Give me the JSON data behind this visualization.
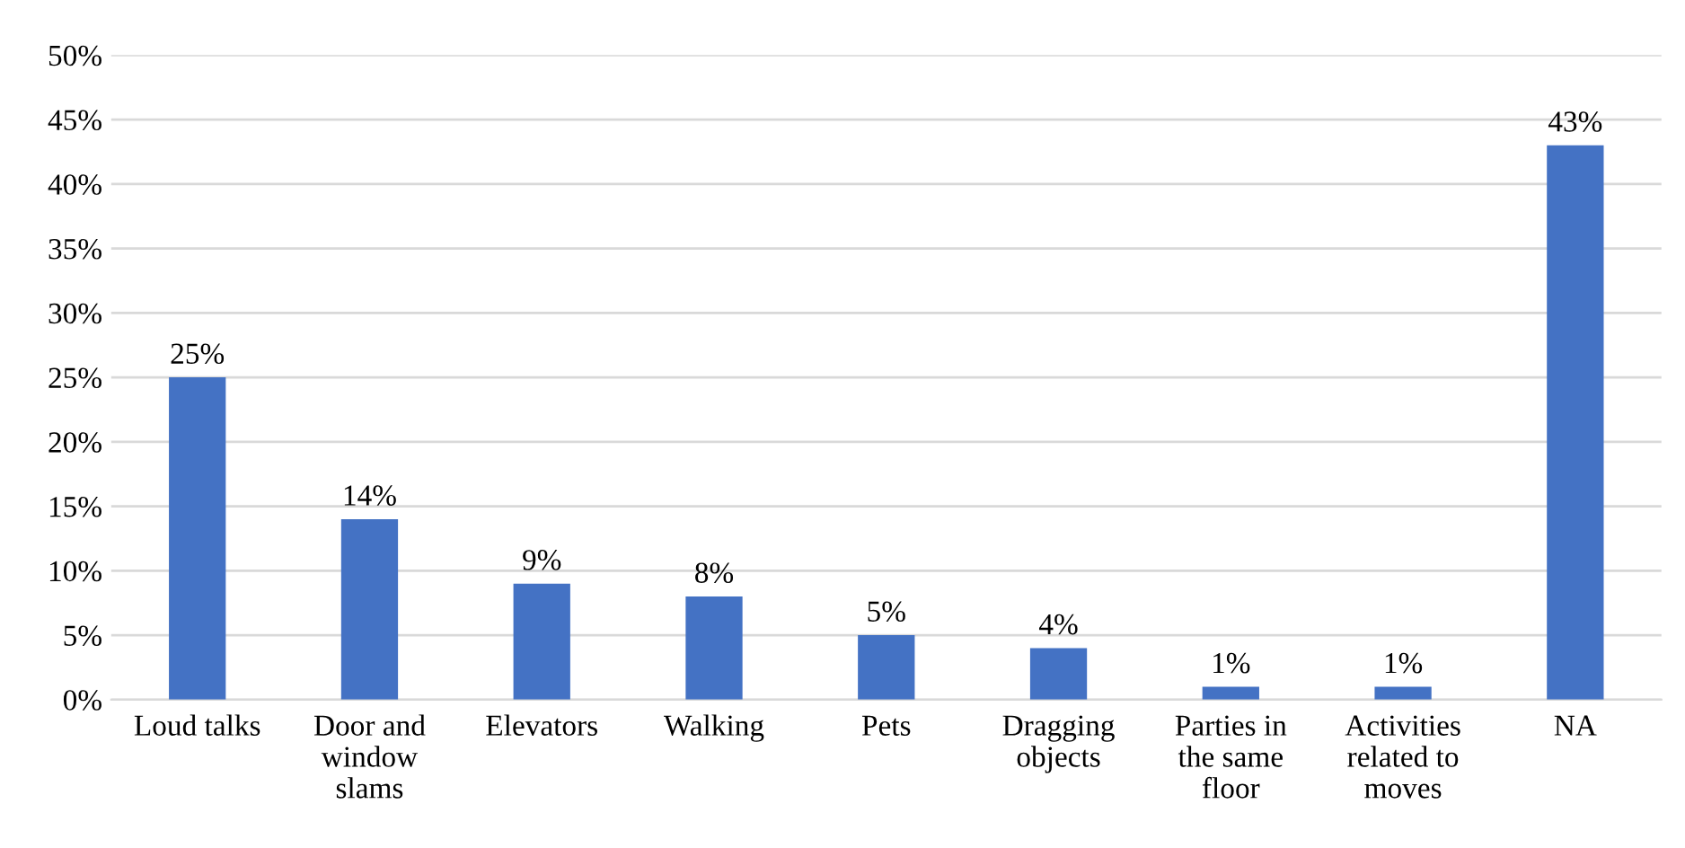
{
  "chart_data": {
    "type": "bar",
    "categories": [
      "Loud talks",
      "Door and\nwindow\nslams",
      "Elevators",
      "Walking",
      "Pets",
      "Dragging\nobjects",
      "Parties in\nthe same\nfloor",
      "Activities\nrelated to\nmoves",
      "NA"
    ],
    "values": [
      25,
      14,
      9,
      8,
      5,
      4,
      1,
      1,
      43
    ],
    "color": "#4472c4",
    "ylim": [
      0,
      50
    ],
    "yticks": [
      {
        "value": 0,
        "label": "0%"
      },
      {
        "value": 5,
        "label": "5%"
      },
      {
        "value": 10,
        "label": "10%"
      },
      {
        "value": 15,
        "label": "15%"
      },
      {
        "value": 20,
        "label": "20%"
      },
      {
        "value": 25,
        "label": "25%"
      },
      {
        "value": 30,
        "label": "30%"
      },
      {
        "value": 35,
        "label": "35%"
      },
      {
        "value": 40,
        "label": "40%"
      },
      {
        "value": 45,
        "label": "45%"
      },
      {
        "value": 50,
        "label": "50%"
      }
    ],
    "value_labels": [
      "25%",
      "14%",
      "9%",
      "8%",
      "5%",
      "4%",
      "1%",
      "1%",
      "43%"
    ],
    "grid": "y"
  }
}
